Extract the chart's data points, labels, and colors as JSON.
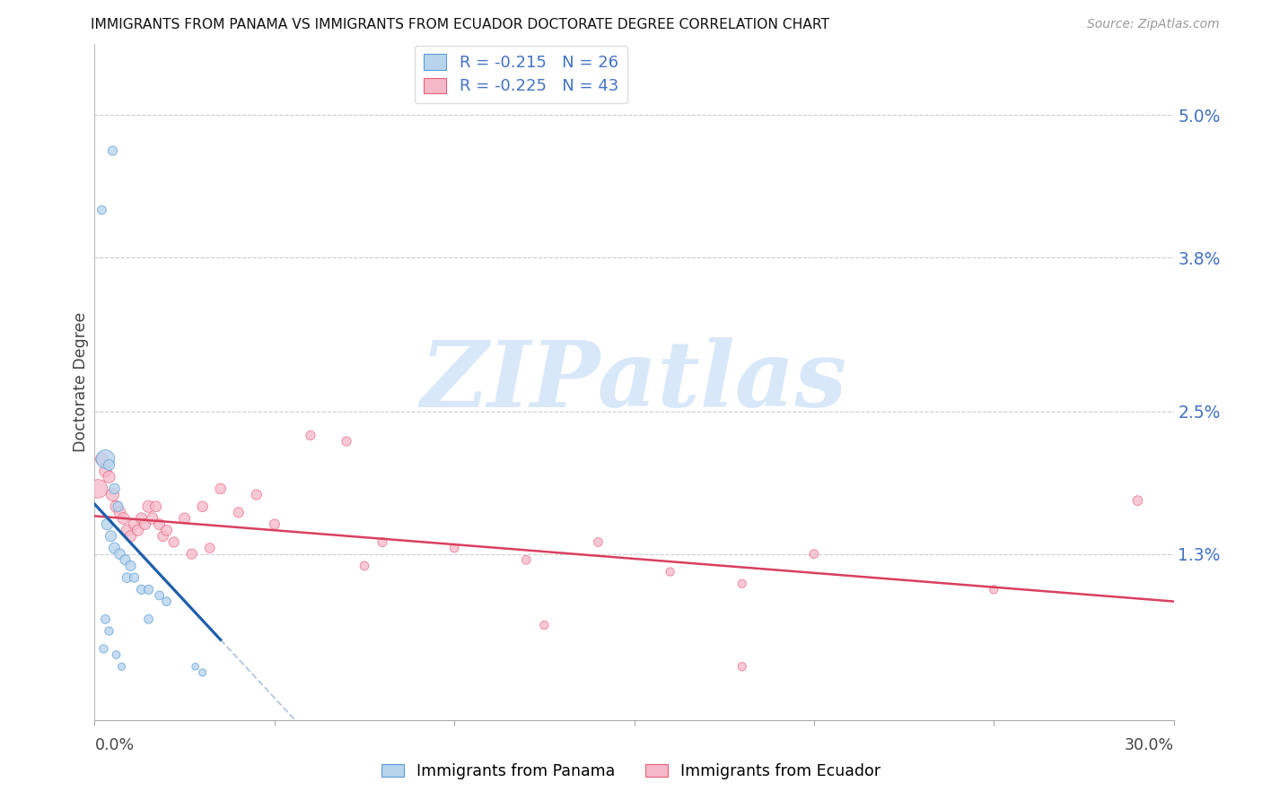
{
  "title": "IMMIGRANTS FROM PANAMA VS IMMIGRANTS FROM ECUADOR DOCTORATE DEGREE CORRELATION CHART",
  "source": "Source: ZipAtlas.com",
  "ylabel": "Doctorate Degree",
  "ytick_values": [
    5.0,
    3.8,
    2.5,
    1.3
  ],
  "xlim": [
    0.0,
    30.0
  ],
  "ylim": [
    -0.1,
    5.6
  ],
  "legend_label1": "Immigrants from Panama",
  "legend_label2": "Immigrants from Ecuador",
  "R1": "-0.215",
  "N1": "26",
  "R2": "-0.225",
  "N2": "43",
  "color_panama": "#b8d4ed",
  "color_ecuador": "#f5b8c8",
  "edge_panama": "#5b9bd5",
  "edge_ecuador": "#e8607a",
  "trendline_panama": "#1f5faa",
  "trendline_ecuador": "#d94060",
  "trendline_dashed_color": "#b8c8e0",
  "watermark_color": "#d8e8f8",
  "legend_text_color": "#333333",
  "legend_rn_color": "#4472c4",
  "right_axis_color": "#4472c4",
  "panama_x": [
    0.2,
    0.5,
    0.3,
    0.4,
    0.55,
    0.65,
    0.35,
    0.45,
    0.55,
    0.7,
    0.85,
    1.0,
    0.9,
    1.1,
    1.3,
    1.5,
    1.8,
    2.0,
    1.5,
    0.3,
    0.4,
    0.25,
    0.6,
    0.75,
    3.0,
    2.8
  ],
  "panama_y": [
    4.2,
    4.7,
    2.1,
    2.05,
    1.85,
    1.7,
    1.55,
    1.45,
    1.35,
    1.3,
    1.25,
    1.2,
    1.1,
    1.1,
    1.0,
    1.0,
    0.95,
    0.9,
    0.75,
    0.75,
    0.65,
    0.5,
    0.45,
    0.35,
    0.3,
    0.35
  ],
  "panama_size": [
    50,
    55,
    220,
    75,
    70,
    65,
    80,
    75,
    75,
    70,
    65,
    65,
    60,
    55,
    55,
    55,
    50,
    50,
    50,
    50,
    45,
    45,
    40,
    35,
    35,
    30
  ],
  "ecuador_x": [
    0.1,
    0.2,
    0.3,
    0.4,
    0.5,
    0.6,
    0.7,
    0.8,
    0.9,
    1.0,
    1.1,
    1.2,
    1.3,
    1.4,
    1.5,
    1.6,
    1.7,
    1.8,
    1.9,
    2.0,
    2.5,
    3.0,
    3.5,
    4.0,
    4.5,
    5.0,
    6.0,
    7.0,
    8.0,
    10.0,
    12.0,
    14.0,
    16.0,
    18.0,
    20.0,
    25.0,
    29.0,
    2.2,
    2.7,
    3.2,
    7.5,
    12.5,
    18.0
  ],
  "ecuador_y": [
    1.85,
    2.1,
    2.0,
    1.95,
    1.8,
    1.7,
    1.65,
    1.6,
    1.5,
    1.45,
    1.55,
    1.5,
    1.6,
    1.55,
    1.7,
    1.6,
    1.7,
    1.55,
    1.45,
    1.5,
    1.6,
    1.7,
    1.85,
    1.65,
    1.8,
    1.55,
    2.3,
    2.25,
    1.4,
    1.35,
    1.25,
    1.4,
    1.15,
    1.05,
    1.3,
    1.0,
    1.75,
    1.4,
    1.3,
    1.35,
    1.2,
    0.7,
    0.35
  ],
  "ecuador_size": [
    220,
    100,
    95,
    90,
    100,
    90,
    85,
    85,
    80,
    80,
    80,
    80,
    80,
    75,
    90,
    80,
    75,
    75,
    70,
    75,
    75,
    70,
    70,
    65,
    65,
    65,
    55,
    55,
    55,
    50,
    50,
    50,
    45,
    45,
    50,
    45,
    60,
    65,
    65,
    60,
    50,
    45,
    45
  ],
  "panama_trend_x0": 0.0,
  "panama_trend_y0": 1.72,
  "panama_trend_x1": 4.5,
  "panama_trend_y1": 0.25,
  "ecuador_trend_x0": 0.0,
  "ecuador_trend_y0": 1.62,
  "ecuador_trend_x1": 30.0,
  "ecuador_trend_y1": 0.9,
  "panama_solid_end": 3.5,
  "panama_dashed_end": 14.0
}
